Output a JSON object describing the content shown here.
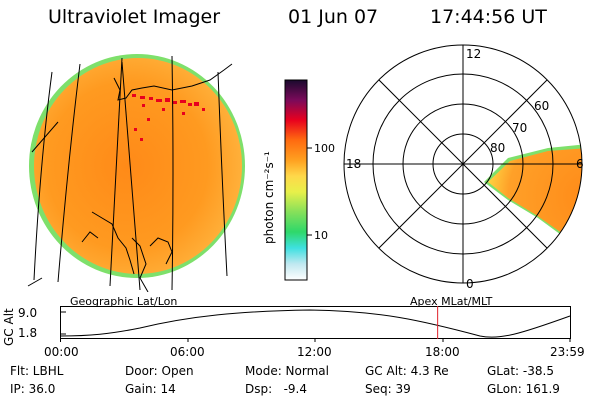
{
  "header": {
    "instrument": "Ultraviolet Imager",
    "date": "01 Jun 07",
    "time": "17:44:56 UT"
  },
  "colorbar": {
    "unit_label": "photon cm⁻²s⁻¹",
    "tick_labels": [
      "100",
      "10"
    ]
  },
  "polar_plot": {
    "mlt_labels": [
      "12",
      "18",
      "6",
      "0"
    ],
    "lat_labels": [
      "60",
      "70",
      "80"
    ]
  },
  "panels": {
    "left_caption": "Geographic Lat/Lon",
    "right_caption": "Apex MLat/MLT"
  },
  "altitude_plot": {
    "ylabel": "GC Alt",
    "ytick_top": "9.0",
    "ytick_bottom": "1.8",
    "time_ticks": [
      "00:00",
      "06:00",
      "12:00",
      "18:00",
      "23:59"
    ],
    "current_time_fraction": 0.7395
  },
  "info": {
    "row1": [
      "Flt: LBHL",
      "Door: Open",
      "Mode: Normal",
      "GC Alt: 4.3 Re",
      "GLat: -38.5"
    ],
    "row2": [
      "IP: 36.0",
      "Gain: 14",
      "Dsp:   -9.4",
      "Seq: 39",
      "GLon: 161.9"
    ]
  },
  "colors": {
    "disk_outer": "#7ee06b",
    "disk_main": "#ff9f22",
    "disk_bright": "#ff7f16",
    "aurora_red": "#e8001e",
    "marker": "#e0202a"
  }
}
